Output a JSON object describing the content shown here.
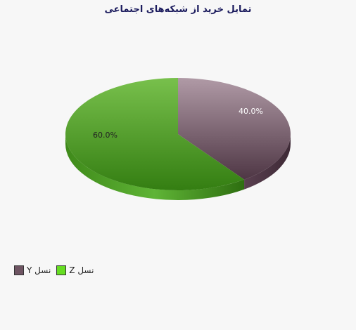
{
  "chart_data": {
    "type": "pie",
    "title": "تمایل خرید از شبکه‌های  اجتماعی",
    "slices": [
      {
        "label": "نسل Y",
        "value": 40.0,
        "value_label": "40.0%",
        "color": "#6e5462",
        "label_color": "#ffffff"
      },
      {
        "label": "نسل Z",
        "value": 60.0,
        "value_label": "60.0%",
        "color": "#4c9a28",
        "label_color": "#222222"
      }
    ],
    "legend_position": "bottom-left"
  },
  "legend": [
    {
      "label": "نسل Y",
      "color": "#6e5462"
    },
    {
      "label": "نسل Z",
      "color": "#66dd22"
    }
  ]
}
